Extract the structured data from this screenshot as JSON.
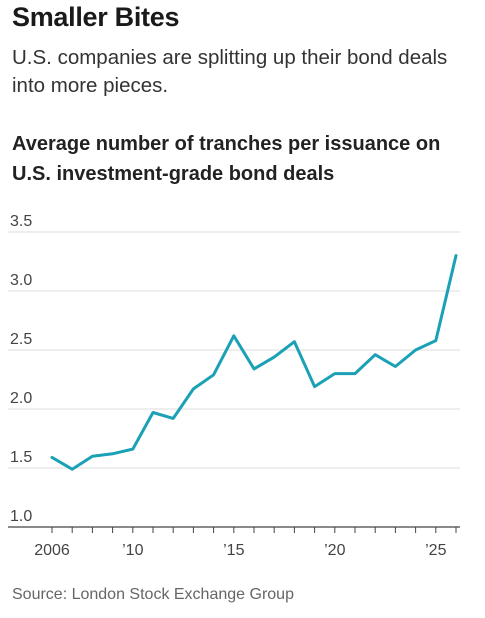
{
  "header": {
    "headline": "Smaller Bites",
    "dek": "U.S. companies are splitting up their bond deals into more pieces."
  },
  "chart_data": {
    "type": "line",
    "title": "Average number of tranches per issuance on U.S. investment-grade bond deals",
    "xlabel": "",
    "ylabel": "",
    "x": [
      2006,
      2007,
      2008,
      2009,
      2010,
      2011,
      2012,
      2013,
      2014,
      2015,
      2016,
      2017,
      2018,
      2019,
      2020,
      2021,
      2022,
      2023,
      2024,
      2025,
      2026
    ],
    "series": [
      {
        "name": "",
        "values": [
          1.59,
          1.49,
          1.6,
          1.62,
          1.66,
          1.97,
          1.92,
          2.17,
          2.29,
          2.62,
          2.34,
          2.44,
          2.57,
          2.19,
          2.3,
          2.3,
          2.46,
          2.36,
          2.5,
          2.58,
          3.3
        ]
      }
    ],
    "xlim": [
      2006,
      2026
    ],
    "ylim": [
      1.0,
      3.5
    ],
    "y_ticks": [
      1.0,
      1.5,
      2.0,
      2.5,
      3.0,
      3.5
    ],
    "y_tick_labels": [
      "1.0",
      "1.5",
      "2.0",
      "2.5",
      "3.0",
      "3.5"
    ],
    "x_ticks": [
      2006,
      2010,
      2015,
      2020,
      2025
    ],
    "x_tick_labels": [
      "2006",
      "’10",
      "’15",
      "’20",
      "’25"
    ],
    "grid": true,
    "line_color": "#1ba1b5",
    "grid_color": "#dddddd",
    "axis_color": "#444444"
  },
  "footer": {
    "source": "Source: London Stock Exchange Group"
  }
}
